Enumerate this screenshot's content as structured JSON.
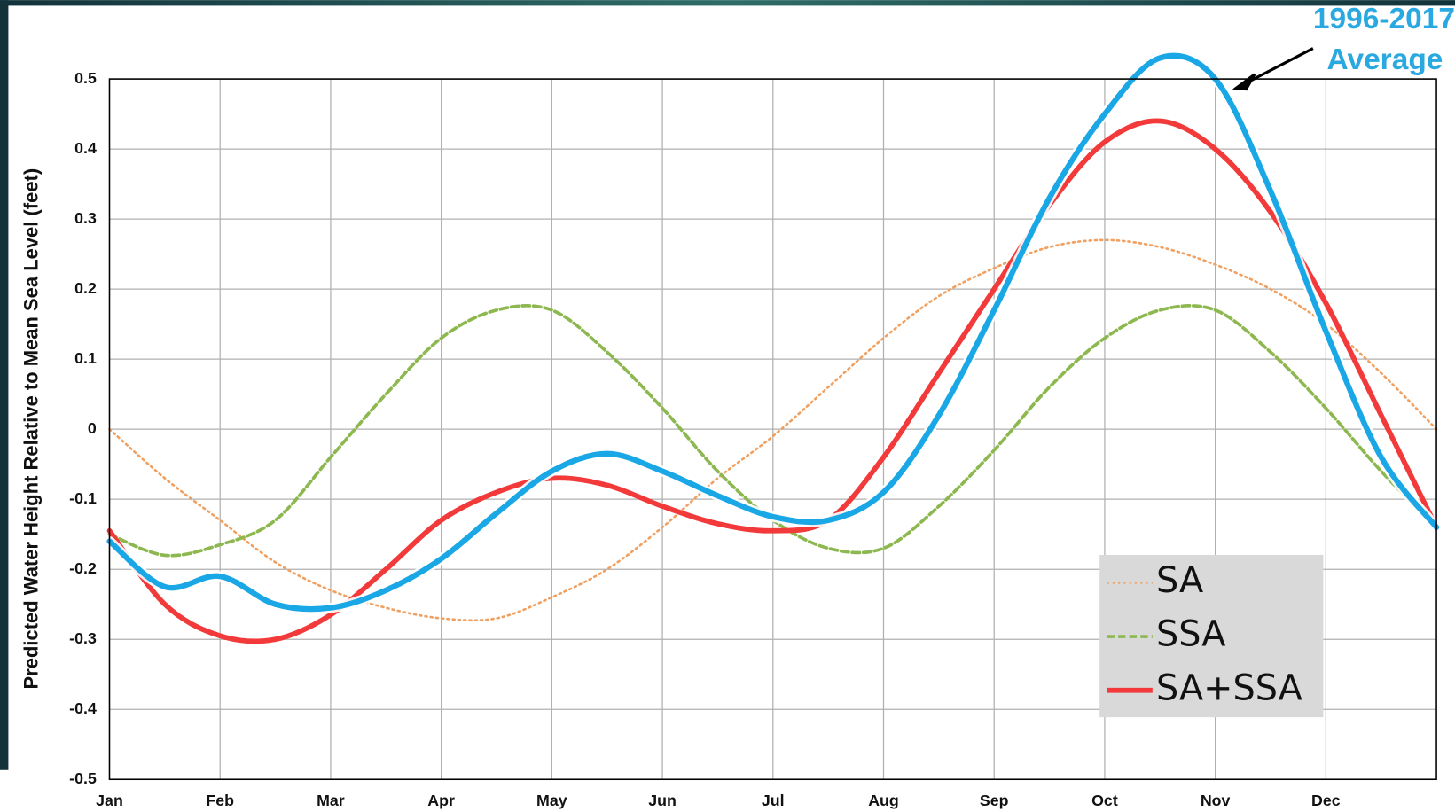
{
  "chart_data": {
    "type": "line",
    "ylabel": "Predicted Water Height Relative to Mean Sea Level (feet)",
    "annotation": "1996-2017 Average",
    "categories": [
      "Jan",
      null,
      "Feb",
      null,
      "Mar",
      null,
      "Apr",
      null,
      "May",
      null,
      "Jun",
      null,
      "Jul",
      null,
      "Aug",
      null,
      "Sep",
      null,
      "Oct",
      null,
      "Nov",
      null,
      "Dec",
      null,
      null
    ],
    "ylim": [
      -0.5,
      0.5
    ],
    "yticks": [
      -0.5,
      -0.4,
      -0.3,
      -0.2,
      -0.1,
      0,
      0.1,
      0.2,
      0.3,
      0.4,
      0.5
    ],
    "grid": true,
    "legend": "lower right",
    "series": [
      {
        "name": "SA",
        "color": "#f0a060",
        "style": "dotted",
        "values": [
          0,
          -0.07,
          -0.13,
          -0.19,
          -0.23,
          -0.255,
          -0.27,
          -0.27,
          -0.24,
          -0.2,
          -0.14,
          -0.07,
          -0.01,
          0.06,
          0.13,
          0.19,
          0.23,
          0.26,
          0.27,
          0.26,
          0.235,
          0.2,
          0.15,
          0.08,
          0
        ]
      },
      {
        "name": "SSA",
        "color": "#8db850",
        "style": "dashed",
        "values": [
          -0.15,
          -0.18,
          -0.165,
          -0.13,
          -0.04,
          0.05,
          0.13,
          0.17,
          0.17,
          0.11,
          0.03,
          -0.06,
          -0.13,
          -0.17,
          -0.17,
          -0.11,
          -0.03,
          0.06,
          0.13,
          0.17,
          0.17,
          0.11,
          0.03,
          -0.06,
          -0.14
        ]
      },
      {
        "name": "SA+SSA",
        "color": "#f23a3a",
        "style": "solid",
        "values": [
          -0.145,
          -0.25,
          -0.295,
          -0.3,
          -0.265,
          -0.2,
          -0.13,
          -0.09,
          -0.07,
          -0.08,
          -0.11,
          -0.135,
          -0.145,
          -0.13,
          -0.04,
          0.08,
          0.2,
          0.32,
          0.41,
          0.44,
          0.4,
          0.31,
          0.18,
          0.02,
          -0.14
        ]
      },
      {
        "name": "1996-2017 Average",
        "color": "#1aa7e6",
        "style": "glow",
        "values": [
          -0.16,
          -0.225,
          -0.21,
          -0.25,
          -0.255,
          -0.23,
          -0.185,
          -0.12,
          -0.06,
          -0.035,
          -0.06,
          -0.095,
          -0.125,
          -0.13,
          -0.09,
          0.02,
          0.17,
          0.33,
          0.45,
          0.53,
          0.5,
          0.34,
          0.14,
          -0.04,
          -0.14
        ]
      }
    ]
  }
}
